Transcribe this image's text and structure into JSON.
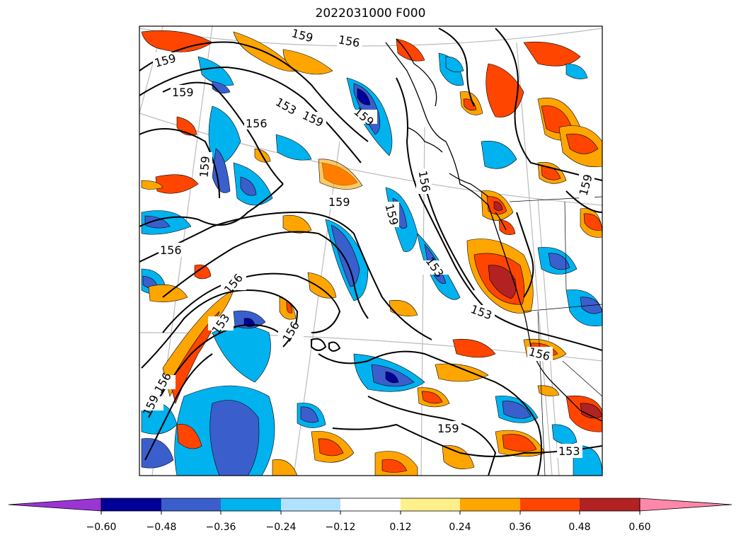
{
  "title": "2022031000 F000",
  "contour_labels": [
    "159",
    "156",
    "159",
    "159",
    "156",
    "153",
    "159",
    "159",
    "159",
    "159",
    "156",
    "156",
    "159",
    "156",
    "153",
    "156",
    "156",
    "159",
    "153",
    "153",
    "156",
    "159",
    "159",
    "153"
  ],
  "colorbar": {
    "colors": [
      "#9a35d4",
      "#000099",
      "#3a5fcd",
      "#00b2ee",
      "#b0e2ff",
      "#ffffff",
      "#fff08a",
      "#ffa500",
      "#ff4500",
      "#b22222",
      "#ff88aa"
    ],
    "ticks": [
      "−0.60",
      "−0.48",
      "−0.36",
      "−0.24",
      "−0.12",
      "0.12",
      "0.24",
      "0.36",
      "0.48",
      "0.60"
    ]
  }
}
